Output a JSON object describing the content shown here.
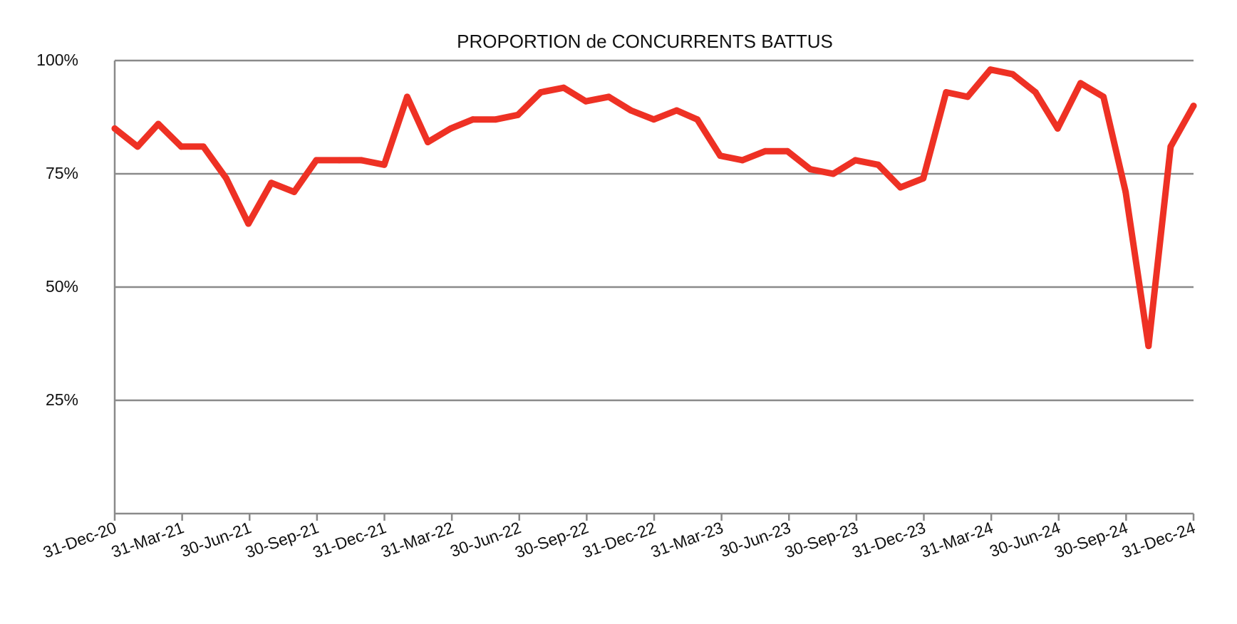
{
  "chart_data": {
    "type": "line",
    "title": "PROPORTION de CONCURRENTS BATTUS",
    "xlabel": "",
    "ylabel": "",
    "ylim": [
      0,
      100
    ],
    "yticks": [
      25,
      50,
      75,
      100
    ],
    "ytick_labels": [
      "25%",
      "50%",
      "75%",
      "100%"
    ],
    "xlim": [
      "2020-12-31",
      "2024-12-31"
    ],
    "xtick_labels": [
      "31-Dec-20",
      "31-Mar-21",
      "30-Jun-21",
      "30-Sep-21",
      "31-Dec-21",
      "31-Mar-22",
      "30-Jun-22",
      "30-Sep-22",
      "31-Dec-22",
      "31-Mar-23",
      "30-Jun-23",
      "30-Sep-23",
      "31-Dec-23",
      "31-Mar-24",
      "30-Jun-24",
      "30-Sep-24",
      "31-Dec-24"
    ],
    "grid": "horizontal",
    "line_color": "#ee3124",
    "x": [
      "2020-12-31",
      "2021-01-31",
      "2021-02-28",
      "2021-03-31",
      "2021-04-30",
      "2021-05-31",
      "2021-06-30",
      "2021-07-31",
      "2021-08-31",
      "2021-09-30",
      "2021-10-31",
      "2021-11-30",
      "2021-12-31",
      "2022-01-31",
      "2022-02-28",
      "2022-03-31",
      "2022-04-30",
      "2022-05-31",
      "2022-06-30",
      "2022-07-31",
      "2022-08-31",
      "2022-09-30",
      "2022-10-31",
      "2022-11-30",
      "2022-12-31",
      "2023-01-31",
      "2023-02-28",
      "2023-03-31",
      "2023-04-30",
      "2023-05-31",
      "2023-06-30",
      "2023-07-31",
      "2023-08-31",
      "2023-09-30",
      "2023-10-31",
      "2023-11-30",
      "2023-12-31",
      "2024-01-31",
      "2024-02-29",
      "2024-03-31",
      "2024-04-30",
      "2024-05-31",
      "2024-06-30",
      "2024-07-31",
      "2024-08-31",
      "2024-09-30",
      "2024-10-31",
      "2024-11-30",
      "2024-12-31"
    ],
    "series": [
      {
        "values": [
          85,
          81,
          86,
          81,
          81,
          74,
          64,
          73,
          71,
          78,
          78,
          78,
          77,
          92,
          82,
          85,
          87,
          87,
          88,
          93,
          94,
          91,
          92,
          89,
          87,
          89,
          87,
          79,
          78,
          80,
          80,
          76,
          75,
          78,
          77,
          72,
          74,
          93,
          92,
          98,
          97,
          93,
          85,
          95,
          92,
          71,
          37,
          81,
          90
        ]
      }
    ]
  }
}
